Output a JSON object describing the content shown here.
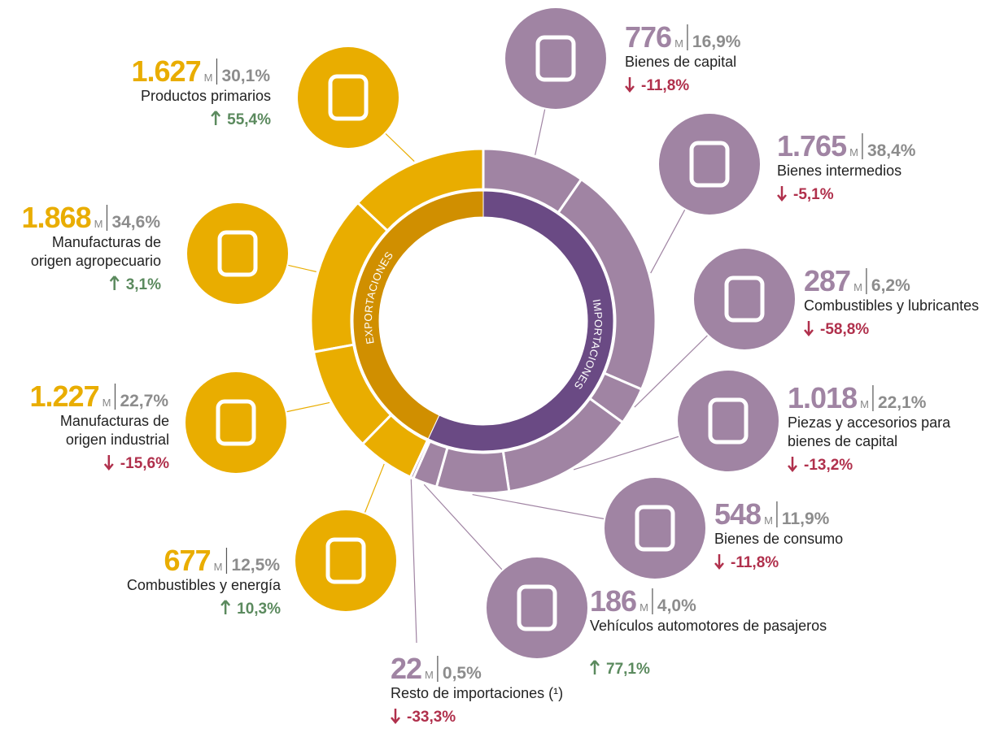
{
  "chart_data": {
    "type": "donut",
    "unit": "M",
    "groups": [
      {
        "name": "EXPORTACIONES",
        "color": "#e9ad00",
        "inner_color": "#d08f00",
        "items": [
          {
            "value": 1627,
            "value_label": "1.627",
            "share": 30.1,
            "share_label": "30,1%",
            "label": [
              "Productos primarios"
            ],
            "change": 55.4,
            "change_label": "55,4%"
          },
          {
            "value": 1868,
            "value_label": "1.868",
            "share": 34.6,
            "share_label": "34,6%",
            "label": [
              "Manufacturas de",
              "origen agropecuario"
            ],
            "change": 3.1,
            "change_label": "3,1%"
          },
          {
            "value": 1227,
            "value_label": "1.227",
            "share": 22.7,
            "share_label": "22,7%",
            "label": [
              "Manufacturas de",
              "origen industrial"
            ],
            "change": -15.6,
            "change_label": "-15,6%"
          },
          {
            "value": 677,
            "value_label": "677",
            "share": 12.5,
            "share_label": "12,5%",
            "label": [
              "Combustibles y energía"
            ],
            "change": 10.3,
            "change_label": "10,3%"
          }
        ]
      },
      {
        "name": "IMPORTACIONES",
        "color": "#a084a3",
        "inner_color": "#6a4a84",
        "items": [
          {
            "value": 776,
            "value_label": "776",
            "share": 16.9,
            "share_label": "16,9%",
            "label": [
              "Bienes de capital"
            ],
            "change": -11.8,
            "change_label": "-11,8%"
          },
          {
            "value": 1765,
            "value_label": "1.765",
            "share": 38.4,
            "share_label": "38,4%",
            "label": [
              "Bienes intermedios"
            ],
            "change": -5.1,
            "change_label": "-5,1%"
          },
          {
            "value": 287,
            "value_label": "287",
            "share": 6.2,
            "share_label": "6,2%",
            "label": [
              "Combustibles y lubricantes"
            ],
            "change": -58.8,
            "change_label": "-58,8%"
          },
          {
            "value": 1018,
            "value_label": "1.018",
            "share": 22.1,
            "share_label": "22,1%",
            "label": [
              "Piezas y accesorios para",
              "bienes de capital"
            ],
            "change": -13.2,
            "change_label": "-13,2%"
          },
          {
            "value": 548,
            "value_label": "548",
            "share": 11.9,
            "share_label": "11,9%",
            "label": [
              "Bienes de consumo"
            ],
            "change": -11.8,
            "change_label": "-11,8%"
          },
          {
            "value": 186,
            "value_label": "186",
            "share": 4.0,
            "share_label": "4,0%",
            "label": [
              "Vehículos automotores de pasajeros"
            ],
            "change": 77.1,
            "change_label": "77,1%"
          },
          {
            "value": 22,
            "value_label": "22",
            "share": 0.5,
            "share_label": "0,5%",
            "label": [
              "Resto de importaciones (¹)"
            ],
            "change": -33.3,
            "change_label": "-33,3%"
          }
        ]
      }
    ]
  }
}
